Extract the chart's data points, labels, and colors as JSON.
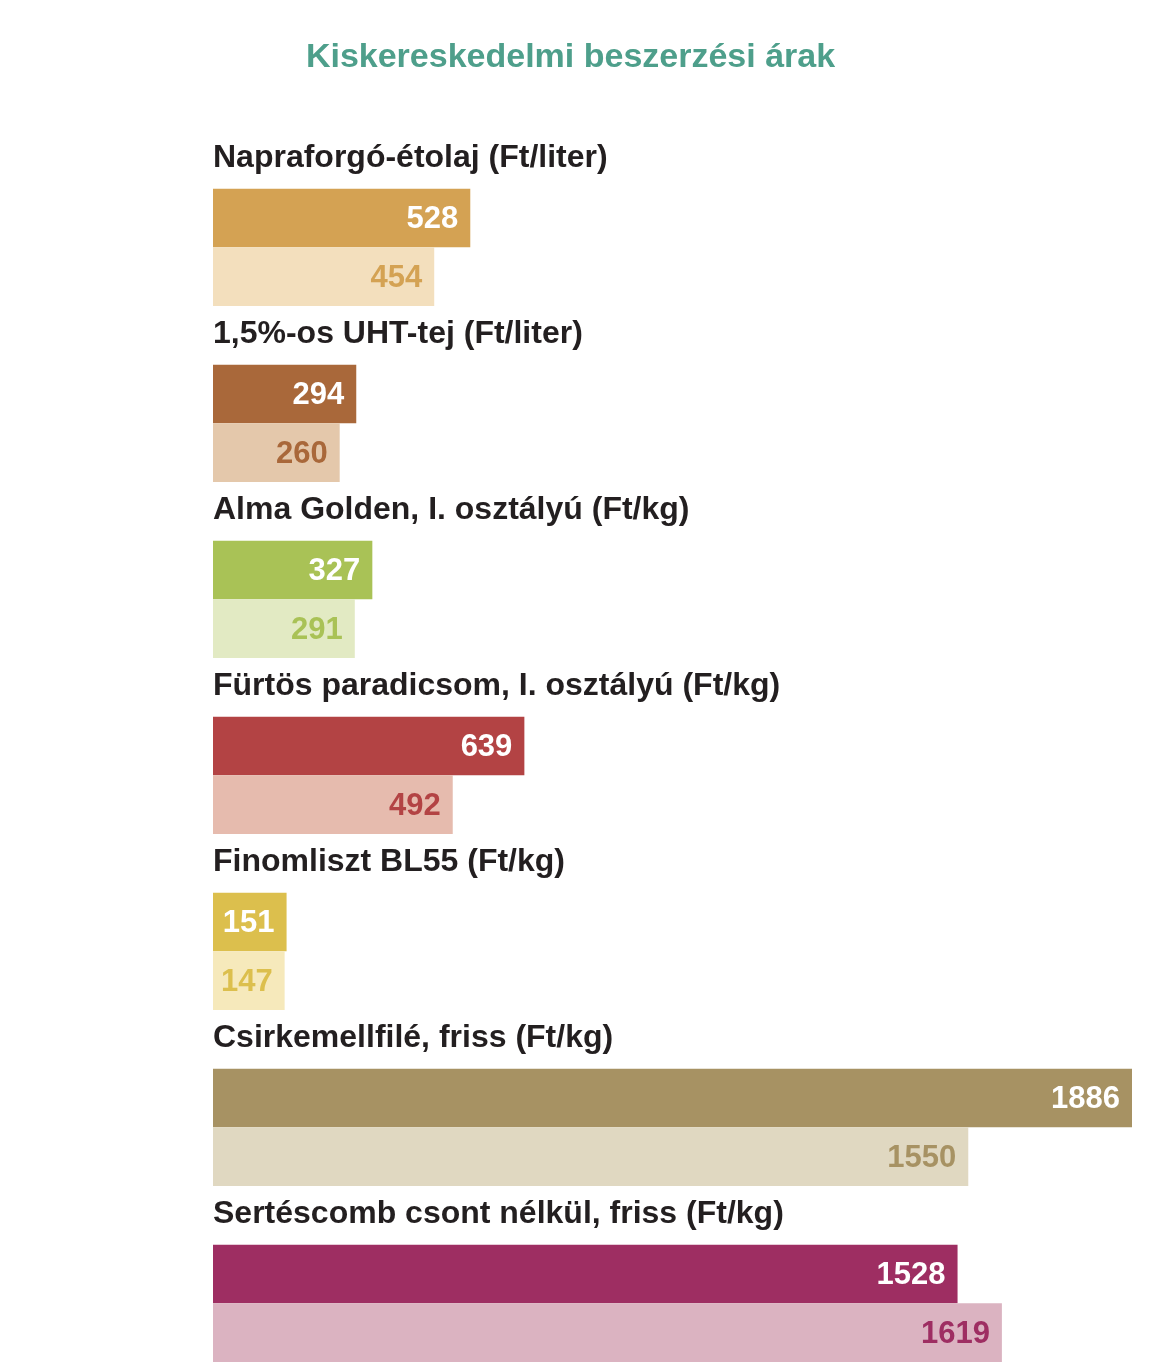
{
  "chart_data": {
    "type": "bar",
    "orientation": "horizontal",
    "title": "Kiskereskedelmi beszerzési árak",
    "categories": [
      "Napraforgó-étolaj (Ft/liter)",
      "1,5%-os UHT-tej (Ft/liter)",
      "Alma Golden, I. osztályú (Ft/kg)",
      "Fürtös paradicsom, I. osztályú (Ft/kg)",
      "Finomliszt BL55 (Ft/kg)",
      "Csirkemellfilé, friss (Ft/kg)",
      "Sertéscomb csont nélkül, friss (Ft/kg)"
    ],
    "series": [
      {
        "colors": [
          "#d4a253",
          "#a9683a",
          "#a9c256",
          "#b34344",
          "#dcbf4d",
          "#a79263",
          "#9e2e62"
        ],
        "values": [
          528,
          294,
          327,
          639,
          151,
          1886,
          1528
        ]
      },
      {
        "colors": [
          "#f3dfbd",
          "#e4c8ab",
          "#e2eac3",
          "#e6bbae",
          "#f6e9bb",
          "#e0d8c1",
          "#dbb3c1"
        ],
        "values": [
          454,
          260,
          291,
          492,
          147,
          1550,
          1619
        ]
      }
    ],
    "data_labels": true
  }
}
